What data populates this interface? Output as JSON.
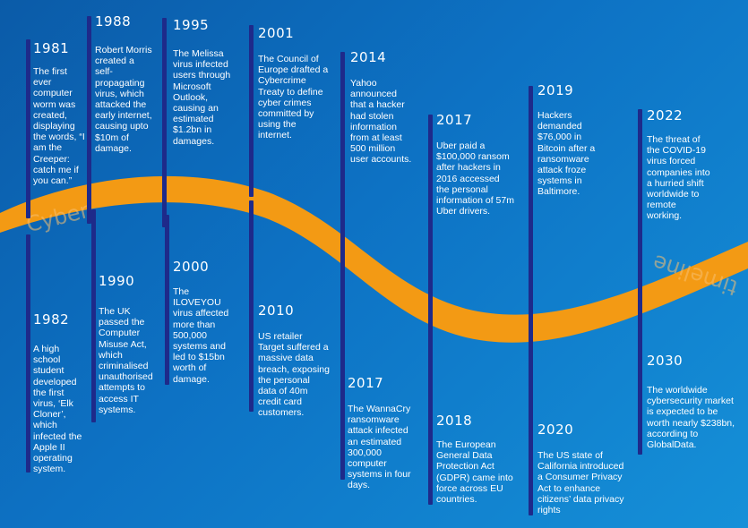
{
  "colors": {
    "background_start": "#0b5ba8",
    "background_end": "#1590d8",
    "wave": "#f39a14",
    "marker": "#1e2a8a",
    "text": "#ffffff"
  },
  "wave_text": {
    "left": "Cyber",
    "right": "timeline"
  },
  "events": {
    "e1981": {
      "year": "1981",
      "text": "The first ever computer worm was created, displaying the words, “I am the Creeper: catch me if you can.”"
    },
    "e1982": {
      "year": "1982",
      "text": "A high school student developed the first virus, ‘Elk Cloner’, which infected the Apple II operating system."
    },
    "e1988": {
      "year": "1988",
      "text": "Robert Morris created a self-propagating virus, which attacked the early internet, causing upto $10m of damage."
    },
    "e1990": {
      "year": "1990",
      "text": "The UK passed the Computer Misuse Act, which criminalised unauthorised attempts to access IT systems."
    },
    "e1995": {
      "year": "1995",
      "text": "The Melissa virus infected users through Microsoft Outlook, causing an estimated $1.2bn in damages."
    },
    "e2000": {
      "year": "2000",
      "text": "The ILOVEYOU virus affected more than 500,000 systems and led to $15bn worth of damage."
    },
    "e2001": {
      "year": "2001",
      "text": "The Council of Europe drafted a Cybercrime Treaty to define cyber crimes committed by using the internet."
    },
    "e2010": {
      "year": "2010",
      "text": "US retailer Target suffered a massive data breach, exposing the personal data of 40m credit card customers."
    },
    "e2014": {
      "year": "2014",
      "text": "Yahoo announced that a hacker had stolen information from at least 500 million user accounts."
    },
    "e2017a": {
      "year": "2017",
      "text": "The WannaCry ransomware attack infected an estimated 300,000 computer systems in four days."
    },
    "e2017b": {
      "year": "2017",
      "text": "Uber paid a $100,000 ransom after hackers in 2016 accessed the personal information of 57m Uber drivers."
    },
    "e2018": {
      "year": "2018",
      "text": "The European General Data Protection Act (GDPR) came into force across EU countries."
    },
    "e2019": {
      "year": "2019",
      "text": "Hackers demanded $76,000 in Bitcoin after a ransomware attack froze systems in Baltimore."
    },
    "e2020": {
      "year": "2020",
      "text": "The US state of California introduced a Consumer Privacy Act to enhance citizens’ data privacy rights"
    },
    "e2022": {
      "year": "2022",
      "text": "The threat of the COVID-19 virus forced companies into a hurried shift worldwide to remote working."
    },
    "e2030": {
      "year": "2030",
      "text": "The worldwide cybersecurity market is expected to be worth nearly $238bn, according to GlobalData."
    }
  }
}
